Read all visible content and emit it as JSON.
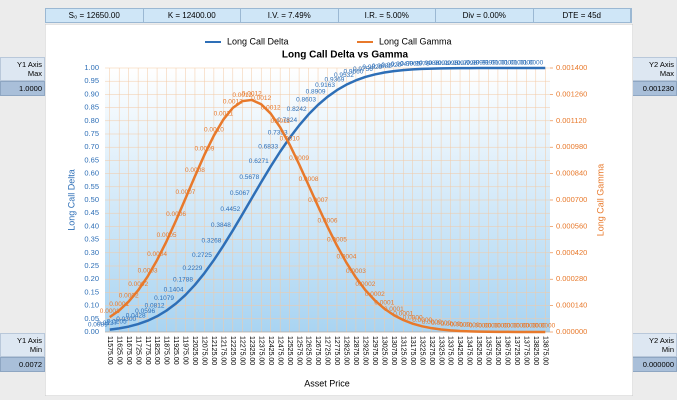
{
  "params": [
    "S₀ = 12650.00",
    "K = 12400.00",
    "I.V. = 7.49%",
    "I.R. = 5.00%",
    "Div = 0.00%",
    "DTE = 45d"
  ],
  "controls": {
    "y1_max": {
      "label": "Y1 Axis Max",
      "value": "1.0000"
    },
    "y1_min": {
      "label": "Y1 Axis Min",
      "value": "0.0072"
    },
    "y2_max": {
      "label": "Y2 Axis Max",
      "value": "0.001230"
    },
    "y2_min": {
      "label": "Y2 Axis Min",
      "value": "0.000000"
    }
  },
  "chart_data": {
    "type": "line",
    "title": "Long Call Delta vs Gamma",
    "x_label": "Asset Price",
    "y_label": "Long Call Delta",
    "y2_label": "Long Call Gamma",
    "legend": "top",
    "grid": true,
    "categories": [
      "11575.00",
      "11625.00",
      "11675.00",
      "11725.00",
      "11775.00",
      "11825.00",
      "11875.00",
      "11925.00",
      "11975.00",
      "12025.00",
      "12075.00",
      "12125.00",
      "12175.00",
      "12225.00",
      "12275.00",
      "12325.00",
      "12375.00",
      "12425.00",
      "12475.00",
      "12525.00",
      "12575.00",
      "12625.00",
      "12675.00",
      "12725.00",
      "12775.00",
      "12825.00",
      "12875.00",
      "12925.00",
      "12975.00",
      "13025.00",
      "13075.00",
      "13125.00",
      "13175.00",
      "13225.00",
      "13275.00",
      "13325.00",
      "13375.00",
      "13425.00",
      "13475.00",
      "13525.00",
      "13575.00",
      "13625.00",
      "13675.00",
      "13725.00",
      "13775.00",
      "13825.00",
      "13875.00"
    ],
    "series": [
      {
        "name": "Long Call Delta",
        "color": "#2e6fb7",
        "axis": "y",
        "values": [
          0.0089,
          0.0137,
          0.0205,
          0.03,
          0.0428,
          0.0596,
          0.0812,
          0.1079,
          0.1404,
          0.1788,
          0.2229,
          0.2725,
          0.3268,
          0.3848,
          0.4452,
          0.5067,
          0.5678,
          0.6271,
          0.6833,
          0.7353,
          0.7824,
          0.8242,
          0.8603,
          0.8909,
          0.9163,
          0.9369,
          0.9532,
          0.966,
          0.9756,
          0.9829,
          0.9882,
          0.992,
          0.9947,
          0.9965,
          0.9978,
          0.9986,
          0.9991,
          0.9995,
          0.9997,
          0.9998,
          0.9999,
          0.9999,
          1,
          1,
          1,
          1,
          1
        ],
        "value_labels": [
          "0.0089",
          "0.0137",
          "0.0205",
          "0.0300",
          "0.0428",
          "0.0596",
          "0.0812",
          "0.1079",
          "0.1404",
          "0.1788",
          "0.2229",
          "0.2725",
          "0.3268",
          "0.3848",
          "0.4452",
          "0.5067",
          "0.5678",
          "0.6271",
          "0.6833",
          "0.7353",
          "0.7824",
          "0.8242",
          "0.8603",
          "0.8909",
          "0.9163",
          "0.9369",
          "0.9532",
          "0.9660",
          "0.9756",
          "0.9829",
          "0.9882",
          "0.9920",
          "0.9947",
          "0.9965",
          "0.9978",
          "0.9986",
          "0.9991",
          "0.9995",
          "0.9997",
          "0.9998",
          "0.9999",
          "0.9999",
          "1.0000",
          "1.0000",
          "1.0000",
          "1.0000",
          "1.0000"
        ]
      },
      {
        "name": "Long Call Gamma",
        "color": "#e8792b",
        "axis": "y2",
        "values": [
          7.9e-05,
          0.0001144,
          0.0001612,
          0.0002208,
          0.000294,
          0.0003813,
          0.0004812,
          0.0005914,
          0.0007081,
          0.0008261,
          0.0009394,
          0.0010417,
          0.0011266,
          0.0011887,
          0.0012241,
          0.0012306,
          0.001208,
          0.0011584,
          0.0010853,
          0.0009938,
          0.0008896,
          0.0007787,
          0.0006668,
          0.0005586,
          0.0004579,
          0.0003675,
          0.0002889,
          0.0002222,
          0.0001676,
          0.0001238,
          8.96e-05,
          6.36e-05,
          4.43e-05,
          3.02e-05,
          2.03e-05,
          1.33e-05,
          8.6e-06,
          5.4e-06,
          3.4e-06,
          2.1e-06,
          1.2e-06,
          7e-07,
          4e-07,
          2e-07,
          1e-07,
          1e-07,
          0
        ],
        "value_labels": [
          "0.0001",
          "0.0001",
          "0.0002",
          "0.0002",
          "0.0003",
          "0.0004",
          "0.0005",
          "0.0006",
          "0.0007",
          "0.0008",
          "0.0009",
          "0.0010",
          "0.0011",
          "0.0012",
          "0.0012",
          "0.0012",
          "0.0012",
          "0.0012",
          "0.0011",
          "0.0010",
          "0.0009",
          "0.0008",
          "0.0007",
          "0.0006",
          "0.0005",
          "0.0004",
          "0.0003",
          "0.0002",
          "0.0002",
          "0.0001",
          "0.0001",
          "0.0001",
          "0.0000",
          "0.0000",
          "0.0000",
          "0.0000",
          "0.0000",
          "0.0000",
          "0.0000",
          "0.0000",
          "0.0000",
          "0.0000",
          "0.0000",
          "0.0000",
          "0.0000",
          "0.0000",
          "0.0000"
        ]
      }
    ],
    "ylim": [
      0,
      1
    ],
    "yticks": [
      {
        "value": 0,
        "label": "0.00"
      },
      {
        "value": 0.05,
        "label": "0.05"
      },
      {
        "value": 0.1,
        "label": "0.10"
      },
      {
        "value": 0.15,
        "label": "0.15"
      },
      {
        "value": 0.2,
        "label": "0.20"
      },
      {
        "value": 0.25,
        "label": "0.25"
      },
      {
        "value": 0.3,
        "label": "0.30"
      },
      {
        "value": 0.35,
        "label": "0.35"
      },
      {
        "value": 0.4,
        "label": "0.40"
      },
      {
        "value": 0.45,
        "label": "0.45"
      },
      {
        "value": 0.5,
        "label": "0.50"
      },
      {
        "value": 0.55,
        "label": "0.55"
      },
      {
        "value": 0.6,
        "label": "0.60"
      },
      {
        "value": 0.65,
        "label": "0.65"
      },
      {
        "value": 0.7,
        "label": "0.70"
      },
      {
        "value": 0.75,
        "label": "0.75"
      },
      {
        "value": 0.8,
        "label": "0.80"
      },
      {
        "value": 0.85,
        "label": "0.85"
      },
      {
        "value": 0.9,
        "label": "0.90"
      },
      {
        "value": 0.95,
        "label": "0.95"
      },
      {
        "value": 1,
        "label": "1.00"
      }
    ],
    "y2lim": [
      0,
      0.0014
    ],
    "y2ticks": [
      {
        "value": 0,
        "label": "0.000000"
      },
      {
        "value": 0.00014,
        "label": "0.000140"
      },
      {
        "value": 0.00028,
        "label": "0.000280"
      },
      {
        "value": 0.00042,
        "label": "0.000420"
      },
      {
        "value": 0.00056,
        "label": "0.000560"
      },
      {
        "value": 0.0007,
        "label": "0.000700"
      },
      {
        "value": 0.00084,
        "label": "0.000840"
      },
      {
        "value": 0.00098,
        "label": "0.000980"
      },
      {
        "value": 0.00112,
        "label": "0.001120"
      },
      {
        "value": 0.00126,
        "label": "0.001260"
      },
      {
        "value": 0.0014,
        "label": "0.001400"
      }
    ]
  }
}
